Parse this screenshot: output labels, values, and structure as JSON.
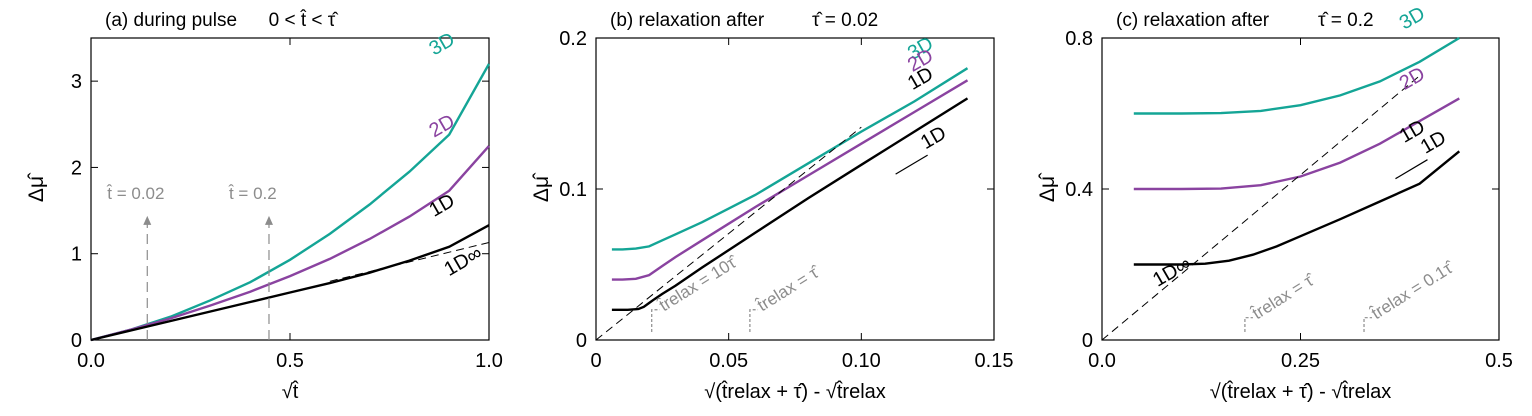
{
  "chart_data": [
    {
      "type": "line",
      "title": "(a) during pulse",
      "title_math": "0 < t̂ < τ̂",
      "xlabel": "√t̂",
      "ylabel": "Δμ̂",
      "xlim": [
        0,
        1.0
      ],
      "ylim": [
        0,
        3.5
      ],
      "xticks": [
        0.0,
        0.5,
        1.0
      ],
      "xtick_labels": [
        "0.0",
        "0.5",
        "1.0"
      ],
      "yticks": [
        0,
        1,
        2,
        3
      ],
      "ytick_labels": [
        "0",
        "1",
        "2",
        "3"
      ],
      "grid": false,
      "legend": "none",
      "series": [
        {
          "name": "3D",
          "color": "#14a596",
          "x": [
            0,
            0.1,
            0.2,
            0.3,
            0.4,
            0.5,
            0.6,
            0.7,
            0.8,
            0.9,
            1.0
          ],
          "y": [
            0,
            0.12,
            0.27,
            0.46,
            0.67,
            0.93,
            1.23,
            1.57,
            1.95,
            2.38,
            3.2
          ]
        },
        {
          "name": "2D",
          "color": "#8a43a0",
          "x": [
            0,
            0.1,
            0.2,
            0.3,
            0.4,
            0.5,
            0.6,
            0.7,
            0.8,
            0.9,
            1.0
          ],
          "y": [
            0,
            0.12,
            0.25,
            0.4,
            0.56,
            0.74,
            0.94,
            1.17,
            1.43,
            1.73,
            2.25
          ]
        },
        {
          "name": "1D",
          "color": "#000000",
          "x": [
            0,
            0.1,
            0.2,
            0.3,
            0.4,
            0.5,
            0.6,
            0.7,
            0.8,
            0.9,
            1.0
          ],
          "y": [
            0,
            0.11,
            0.22,
            0.33,
            0.44,
            0.55,
            0.66,
            0.78,
            0.92,
            1.08,
            1.33
          ]
        },
        {
          "name": "1D∞",
          "color": "#000000",
          "dashed": true,
          "x": [
            0.6,
            1.0
          ],
          "y": [
            0.68,
            1.13
          ]
        }
      ],
      "annotations": [
        {
          "text": "t̂ = 0.02",
          "x": 0.1414,
          "y_from": 0,
          "y_to": 1.45,
          "color": "#8c8c8c"
        },
        {
          "text": "t̂ = 0.2",
          "x": 0.4472,
          "y_from": 0,
          "y_to": 1.45,
          "color": "#8c8c8c"
        }
      ]
    },
    {
      "type": "line",
      "title": "(b) relaxation after",
      "title_math": "τ̂ = 0.02",
      "xlabel": "√(t̂relax + τ̂) - √t̂relax",
      "ylabel": "Δμ̂",
      "xlim": [
        0,
        0.15
      ],
      "ylim": [
        0,
        0.2
      ],
      "xticks": [
        0,
        0.05,
        0.1,
        0.15
      ],
      "xtick_labels": [
        "0",
        "0.05",
        "0.10",
        "0.15"
      ],
      "yticks": [
        0,
        0.1,
        0.2
      ],
      "ytick_labels": [
        "0",
        "0.1",
        "0.2"
      ],
      "grid": false,
      "legend": "none",
      "series": [
        {
          "name": "3D",
          "color": "#14a596",
          "x": [
            0.006,
            0.01,
            0.015,
            0.02,
            0.025,
            0.03,
            0.04,
            0.05,
            0.06,
            0.08,
            0.1,
            0.12,
            0.14
          ],
          "y": [
            0.06,
            0.06,
            0.0605,
            0.062,
            0.066,
            0.07,
            0.078,
            0.087,
            0.096,
            0.117,
            0.138,
            0.158,
            0.18
          ]
        },
        {
          "name": "2D",
          "color": "#8a43a0",
          "x": [
            0.006,
            0.01,
            0.015,
            0.02,
            0.025,
            0.03,
            0.04,
            0.05,
            0.06,
            0.08,
            0.1,
            0.12,
            0.14
          ],
          "y": [
            0.04,
            0.04,
            0.0405,
            0.043,
            0.049,
            0.055,
            0.066,
            0.077,
            0.088,
            0.109,
            0.13,
            0.151,
            0.172
          ]
        },
        {
          "name": "1D",
          "color": "#000000",
          "x": [
            0.006,
            0.012,
            0.016,
            0.018,
            0.02,
            0.022,
            0.025,
            0.03,
            0.04,
            0.06,
            0.08,
            0.1,
            0.12,
            0.14
          ],
          "y": [
            0.02,
            0.02,
            0.0205,
            0.022,
            0.0245,
            0.027,
            0.0305,
            0.036,
            0.048,
            0.071,
            0.094,
            0.116,
            0.138,
            0.16
          ]
        },
        {
          "name": "asymptote",
          "color": "#000000",
          "dashed": true,
          "x": [
            0,
            0.1
          ],
          "y": [
            0,
            0.141
          ]
        }
      ],
      "annotations": [
        {
          "text": "t̂relax = 10τ̂",
          "x": 0.021,
          "y": 0.024,
          "color": "#8c8c8c"
        },
        {
          "text": "t̂relax = τ̂",
          "x": 0.058,
          "y": 0.024,
          "color": "#8c8c8c"
        },
        {
          "text": "1D",
          "x": 0.128,
          "y": 0.133,
          "color": "#000000",
          "arrow": "down-left"
        }
      ]
    },
    {
      "type": "line",
      "title": "(c) relaxation after",
      "title_math": "τ̂ = 0.2",
      "xlabel": "√(t̂relax + τ̂) - √t̂relax",
      "ylabel": "Δμ̂",
      "xlim": [
        0,
        0.5
      ],
      "ylim": [
        0,
        0.8
      ],
      "xticks": [
        0,
        0.25,
        0.5
      ],
      "xtick_labels": [
        "0.0",
        "0.25",
        "0.5"
      ],
      "yticks": [
        0,
        0.4,
        0.8
      ],
      "ytick_labels": [
        "0",
        "0.4",
        "0.8"
      ],
      "grid": false,
      "legend": "none",
      "series": [
        {
          "name": "3D",
          "color": "#14a596",
          "x": [
            0.04,
            0.1,
            0.15,
            0.2,
            0.25,
            0.3,
            0.35,
            0.4,
            0.45
          ],
          "y": [
            0.6,
            0.6,
            0.601,
            0.607,
            0.622,
            0.648,
            0.685,
            0.737,
            0.8
          ]
        },
        {
          "name": "2D",
          "color": "#8a43a0",
          "x": [
            0.04,
            0.1,
            0.15,
            0.2,
            0.25,
            0.3,
            0.35,
            0.4,
            0.45
          ],
          "y": [
            0.4,
            0.4,
            0.401,
            0.41,
            0.433,
            0.47,
            0.52,
            0.58,
            0.64
          ]
        },
        {
          "name": "1D",
          "color": "#000000",
          "x": [
            0.04,
            0.1,
            0.13,
            0.16,
            0.19,
            0.22,
            0.25,
            0.3,
            0.35,
            0.4,
            0.45
          ],
          "y": [
            0.2,
            0.2,
            0.202,
            0.21,
            0.226,
            0.248,
            0.275,
            0.32,
            0.367,
            0.414,
            0.5
          ]
        },
        {
          "name": "1D∞",
          "color": "#000000",
          "dashed": true,
          "x": [
            0,
            0.4
          ],
          "y": [
            0,
            0.7
          ]
        }
      ],
      "annotations": [
        {
          "text": "t̂relax = τ̂",
          "x": 0.18,
          "y": 0.075,
          "color": "#8c8c8c"
        },
        {
          "text": "t̂relax = 0.1τ̂",
          "x": 0.33,
          "y": 0.075,
          "color": "#8c8c8c"
        },
        {
          "text": "1D",
          "x": 0.42,
          "y": 0.52,
          "color": "#000000",
          "arrow": "down-left"
        }
      ]
    }
  ]
}
